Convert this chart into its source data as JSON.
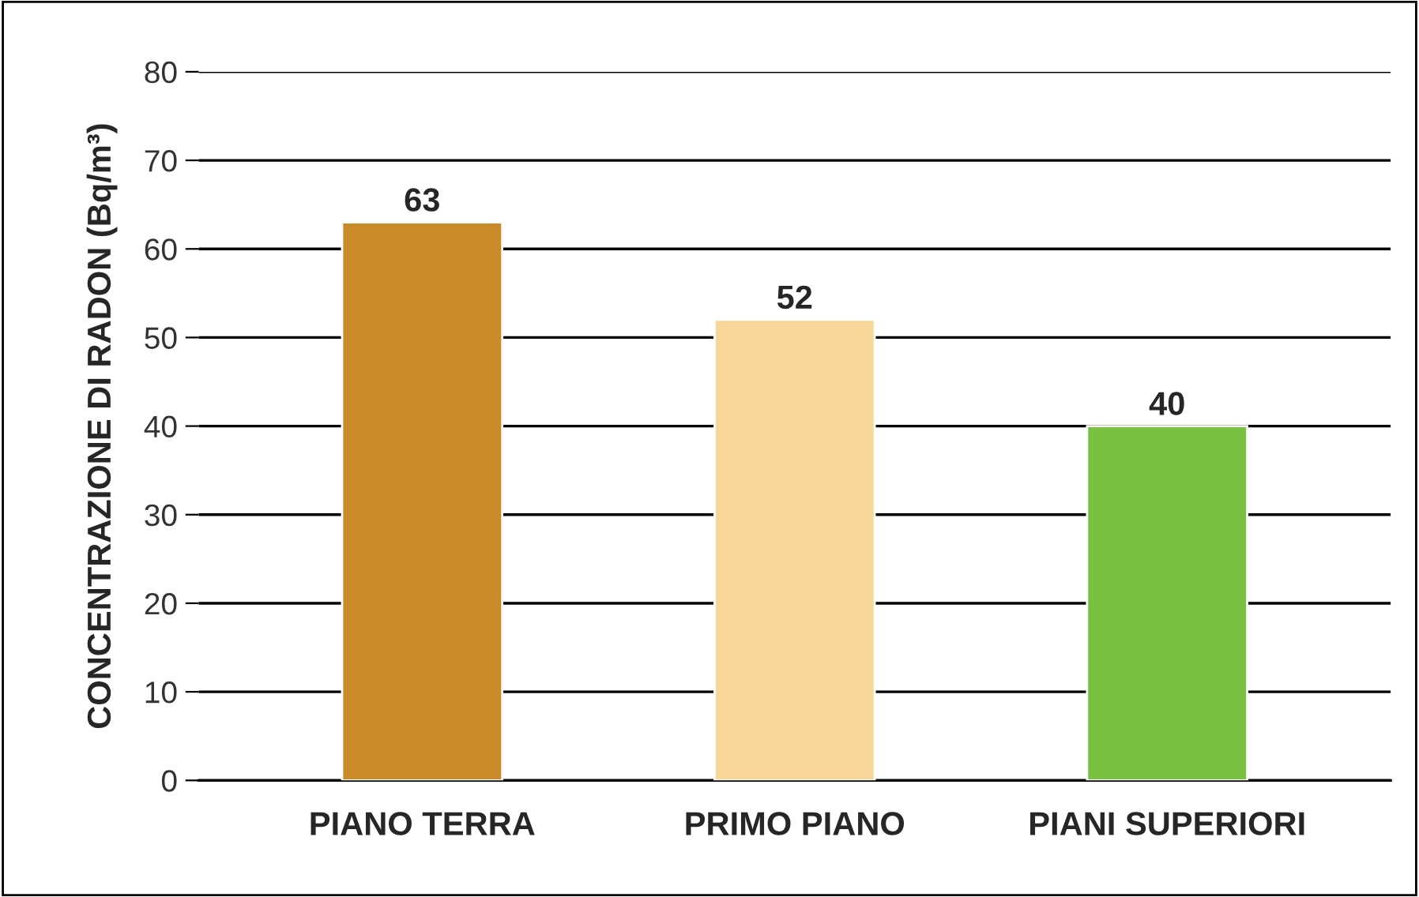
{
  "chart_data": {
    "type": "bar",
    "ylabel": "CONCENTRAZIONE DI RADON (Bq/m³)",
    "categories": [
      "PIANO TERRA",
      "PRIMO PIANO",
      "PIANI SUPERIORI"
    ],
    "values": [
      63,
      52,
      40
    ],
    "colors": [
      "#c98a2a",
      "#f7d89a",
      "#7ac143"
    ],
    "ylim": [
      0,
      80
    ],
    "yticks": [
      0,
      10,
      20,
      30,
      40,
      50,
      60,
      70,
      80
    ],
    "grid": "y",
    "data_labels": true
  }
}
